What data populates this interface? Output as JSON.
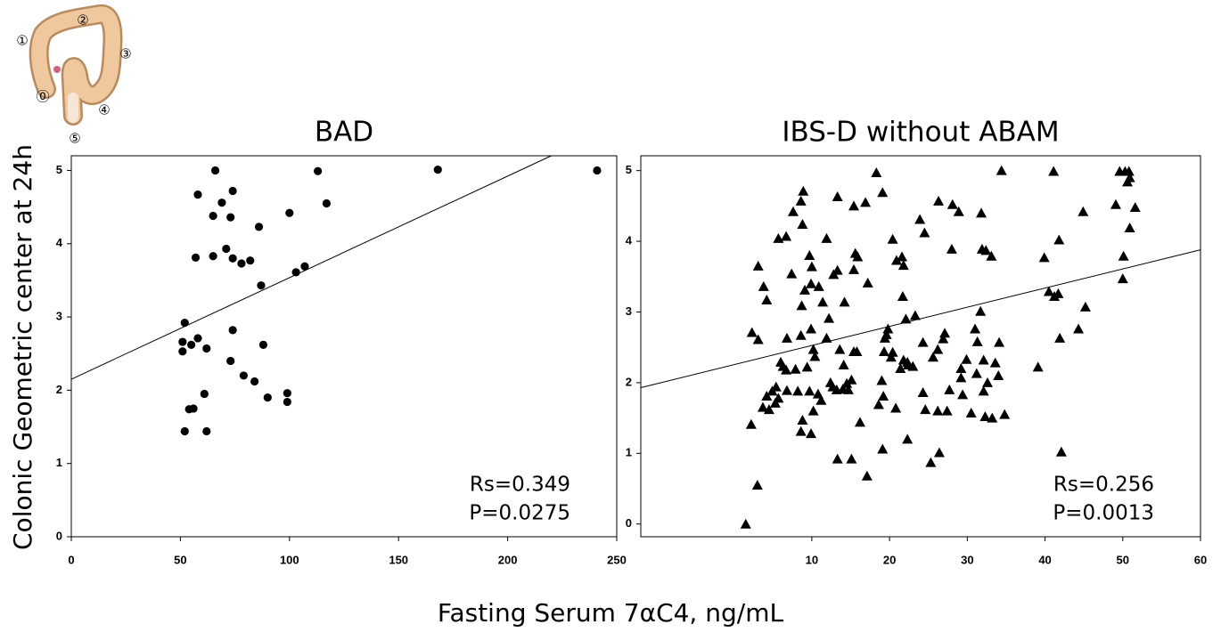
{
  "figure": {
    "labels": [
      "①",
      "②",
      "③",
      "⓪",
      "④",
      "⑤"
    ]
  },
  "shared": {
    "y_label": "Colonic Geometric center at 24h",
    "x_label": "Fasting Serum 7αC4, ng/mL"
  },
  "chart_data": [
    {
      "type": "scatter",
      "title": "BAD",
      "marker": "circle",
      "color": "#000000",
      "x": [
        66,
        58,
        74,
        69,
        65,
        73,
        113,
        168,
        241,
        117,
        100,
        86,
        71,
        57,
        65,
        74,
        78,
        82,
        107,
        103,
        87,
        52,
        74,
        51,
        58,
        55,
        62,
        88,
        51,
        73,
        79,
        84,
        61,
        99,
        90,
        99,
        56,
        54,
        52,
        62
      ],
      "y": [
        5.0,
        4.67,
        4.72,
        4.56,
        4.38,
        4.36,
        4.99,
        5.01,
        5.0,
        4.55,
        4.42,
        4.23,
        3.93,
        3.81,
        3.83,
        3.8,
        3.73,
        3.77,
        3.69,
        3.61,
        3.43,
        2.92,
        2.82,
        2.66,
        2.71,
        2.62,
        2.57,
        2.62,
        2.53,
        2.4,
        2.2,
        2.12,
        1.95,
        1.96,
        1.9,
        1.84,
        1.75,
        1.74,
        1.44,
        1.44
      ],
      "fit": {
        "x": [
          0,
          220
        ],
        "y": [
          2.15,
          5.2
        ]
      },
      "xlim": [
        0,
        250
      ],
      "ylim": [
        0,
        5.2
      ],
      "xticks": [
        0,
        50,
        100,
        150,
        200,
        250
      ],
      "yticks": [
        0,
        1,
        2,
        3,
        4,
        5
      ],
      "annotations": [
        "Rs=0.349",
        "P=0.0275"
      ]
    },
    {
      "type": "scatter",
      "title": "IBS-D without ABAM",
      "marker": "triangle",
      "color": "#000000",
      "x": [
        1.5,
        3.0,
        2.2,
        2.3,
        3.1,
        3.1,
        3.8,
        4.2,
        3.7,
        4.2,
        4.5,
        4.9,
        5.3,
        5.4,
        5.7,
        5.7,
        6.7,
        6.0,
        6.3,
        6.8,
        6.7,
        6.8,
        7.4,
        7.6,
        7.9,
        8.2,
        8.6,
        8.6,
        8.9,
        8.8,
        8.7,
        9.1,
        9.4,
        9.7,
        9.9,
        10.0,
        9.9,
        10.2,
        10.4,
        9.7,
        8.8,
        8.6,
        9.9,
        10.2,
        10.8,
        11.2,
        10.9,
        11.4,
        11.9,
        11.9,
        12.2,
        12.4,
        12.7,
        12.8,
        13.3,
        13.3,
        13.6,
        13.2,
        13.3,
        14.0,
        14.1,
        14.2,
        14.5,
        14.7,
        15.1,
        15.1,
        15.4,
        15.4,
        15.6,
        15.4,
        15.8,
        15.9,
        16.2,
        16.9,
        17.2,
        17.1,
        18.3,
        19.1,
        18.6,
        19.0,
        19.2,
        19.4,
        19.6,
        19.3,
        19.8,
        19.1,
        20.2,
        20.4,
        20.4,
        20.8,
        20.9,
        21.4,
        21.6,
        21.8,
        21.7,
        21.8,
        22.1,
        22.3,
        22.4,
        22.3,
        23.0,
        23.3,
        23.9,
        24.5,
        24.3,
        24.6,
        24.3,
        25.3,
        25.6,
        26.2,
        26.2,
        26.3,
        26.4,
        26.9,
        27.1,
        27.4,
        27.7,
        28.0,
        28.1,
        28.9,
        29.2,
        29.2,
        29.4,
        29.9,
        30.5,
        31.0,
        31.2,
        31.3,
        31.7,
        31.8,
        31.9,
        32.1,
        32.1,
        32.3,
        32.4,
        32.6,
        33.1,
        33.2,
        33.6,
        34.0,
        34.1,
        34.4,
        34.8,
        39.1,
        39.9,
        40.5,
        41.1,
        41.2,
        41.7,
        41.8,
        41.9,
        42.1,
        44.3,
        44.9,
        45.2,
        49.1,
        49.6,
        50.0,
        50.1,
        50.3,
        50.6,
        50.8,
        50.9,
        50.9,
        51.6
      ],
      "y": [
        0.0,
        0.55,
        1.41,
        2.71,
        2.61,
        3.65,
        3.36,
        3.17,
        1.65,
        1.81,
        1.62,
        1.88,
        1.71,
        1.94,
        1.78,
        4.04,
        4.07,
        2.29,
        2.23,
        2.63,
        2.18,
        1.89,
        3.54,
        4.42,
        2.19,
        1.88,
        2.67,
        4.57,
        4.71,
        4.24,
        3.09,
        3.31,
        2.22,
        3.8,
        3.4,
        3.64,
        2.76,
        2.47,
        2.37,
        1.88,
        1.47,
        1.31,
        1.28,
        1.6,
        1.84,
        1.75,
        3.36,
        3.14,
        4.04,
        2.63,
        2.91,
        2.0,
        1.94,
        3.53,
        4.63,
        3.59,
        2.47,
        1.9,
        0.92,
        1.91,
        2.25,
        3.14,
        1.99,
        1.9,
        0.92,
        2.04,
        2.44,
        3.6,
        3.83,
        4.5,
        2.44,
        3.78,
        1.44,
        4.55,
        3.41,
        0.68,
        4.97,
        4.69,
        1.69,
        2.03,
        1.81,
        2.63,
        2.68,
        2.44,
        2.76,
        1.06,
        2.36,
        2.43,
        4.03,
        1.64,
        3.73,
        2.2,
        3.78,
        2.32,
        3.22,
        3.66,
        2.9,
        2.29,
        2.25,
        1.2,
        2.23,
        2.95,
        4.31,
        4.12,
        1.86,
        1.62,
        2.57,
        0.87,
        2.36,
        1.6,
        2.47,
        4.57,
        1.01,
        2.62,
        2.7,
        1.6,
        1.9,
        3.89,
        4.52,
        4.42,
        2.2,
        2.07,
        1.83,
        2.33,
        1.57,
        2.76,
        2.13,
        2.58,
        3.01,
        4.4,
        3.89,
        2.32,
        1.88,
        1.52,
        3.87,
        2.0,
        3.79,
        1.5,
        2.28,
        2.1,
        2.57,
        5.0,
        1.55,
        2.22,
        3.77,
        3.29,
        4.99,
        3.22,
        3.26,
        4.02,
        2.63,
        1.02,
        2.76,
        4.42,
        3.07,
        4.52,
        4.99,
        3.47,
        3.79,
        4.99,
        4.84,
        4.99,
        4.9,
        4.19,
        4.48
      ],
      "fit": {
        "x": [
          -12,
          60
        ],
        "y": [
          1.93,
          3.88
        ]
      },
      "xlim": [
        -12,
        60
      ],
      "ylim": [
        -0.18,
        5.21
      ],
      "xticks": [
        10,
        20,
        30,
        40,
        50,
        60
      ],
      "yticks": [
        0,
        1,
        2,
        3,
        4,
        5
      ],
      "annotations": [
        "Rs=0.256",
        "P=0.0013"
      ]
    }
  ]
}
